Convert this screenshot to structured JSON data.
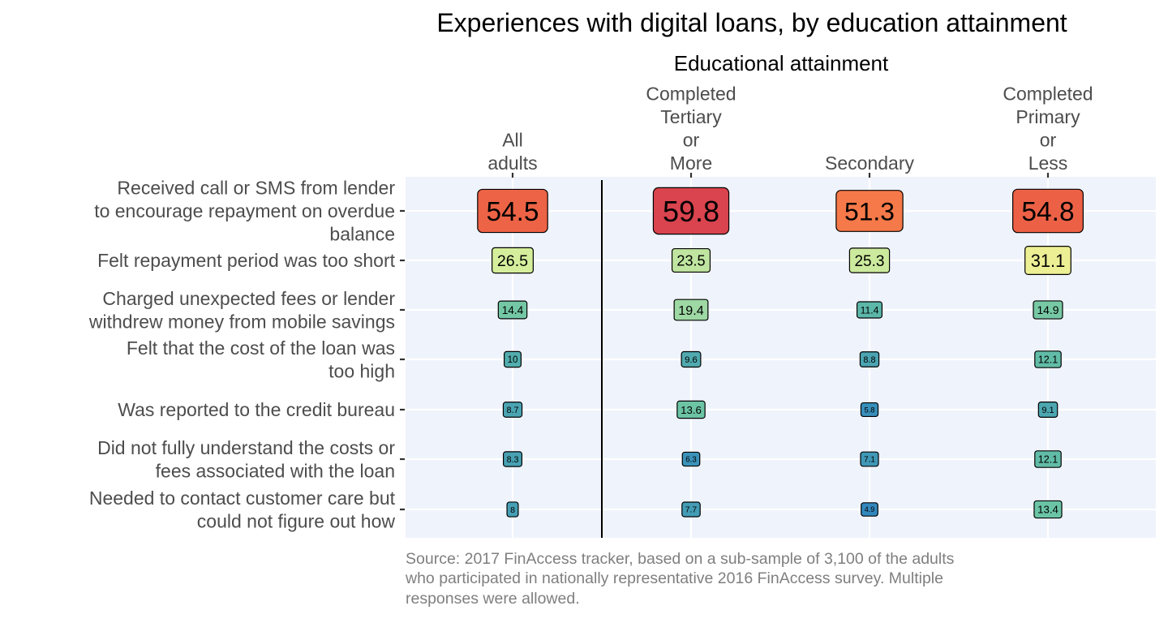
{
  "chart_data": {
    "type": "table",
    "title": "Experiences with digital loans, by education attainment",
    "column_group_label": "Educational attainment",
    "columns": [
      {
        "name": "All adults",
        "lines": [
          "All",
          "adults"
        ]
      },
      {
        "name": "Completed Tertiary or More",
        "lines": [
          "Completed",
          "Tertiary",
          "or",
          "More"
        ]
      },
      {
        "name": "Secondary",
        "lines": [
          "Secondary"
        ]
      },
      {
        "name": "Completed Primary or Less",
        "lines": [
          "Completed",
          "Primary",
          "or",
          "Less"
        ]
      }
    ],
    "rows": [
      {
        "name": "Received call or SMS from lender to encourage repayment on overdue balance",
        "lines": [
          "Received call or SMS from lender",
          "to encourage repayment on overdue",
          "balance"
        ]
      },
      {
        "name": "Felt repayment period was too short",
        "lines": [
          "Felt repayment period was too short"
        ]
      },
      {
        "name": "Charged unexpected fees or lender withdrew money from mobile savings",
        "lines": [
          "Charged unexpected fees or lender",
          "withdrew money from mobile savings"
        ]
      },
      {
        "name": "Felt that the cost of the loan was too high",
        "lines": [
          "Felt that the cost of the loan was",
          "too high"
        ]
      },
      {
        "name": "Was reported to the credit bureau",
        "lines": [
          "Was reported to the credit bureau"
        ]
      },
      {
        "name": "Did not fully understand the costs or fees associated with the loan",
        "lines": [
          "Did not fully understand the costs or",
          "fees associated with the loan"
        ]
      },
      {
        "name": "Needed to contact customer care but could not figure out how",
        "lines": [
          "Needed to contact customer care but",
          "could not figure out how"
        ]
      }
    ],
    "values": [
      [
        54.5,
        59.8,
        51.3,
        54.8
      ],
      [
        26.5,
        23.5,
        25.3,
        31.1
      ],
      [
        14.4,
        19.4,
        11.4,
        14.9
      ],
      [
        10,
        9.6,
        8.8,
        12.1
      ],
      [
        8.7,
        13.6,
        5.8,
        9.1
      ],
      [
        8.3,
        6.3,
        7.1,
        12.1
      ],
      [
        8,
        7.7,
        4.9,
        13.4
      ]
    ],
    "labels": [
      [
        "54.5",
        "59.8",
        "51.3",
        "54.8"
      ],
      [
        "26.5",
        "23.5",
        "25.3",
        "31.1"
      ],
      [
        "14.4",
        "19.4",
        "11.4",
        "14.9"
      ],
      [
        "10",
        "9.6",
        "8.8",
        "12.1"
      ],
      [
        "8.7",
        "13.6",
        "5.8",
        "9.1"
      ],
      [
        "8.3",
        "6.3",
        "7.1",
        "12.1"
      ],
      [
        "8",
        "7.7",
        "4.9",
        "13.4"
      ]
    ],
    "color_scale": "Spectral (low = blue, high = red)",
    "grid": true,
    "background": "#eff3fb",
    "caption_lines": [
      "Source: 2017 FinAccess tracker, based on a sub-sample of 3,100 of the adults",
      "who participated in nationally representative 2016 FinAccess survey. Multiple",
      "responses were allowed."
    ]
  }
}
